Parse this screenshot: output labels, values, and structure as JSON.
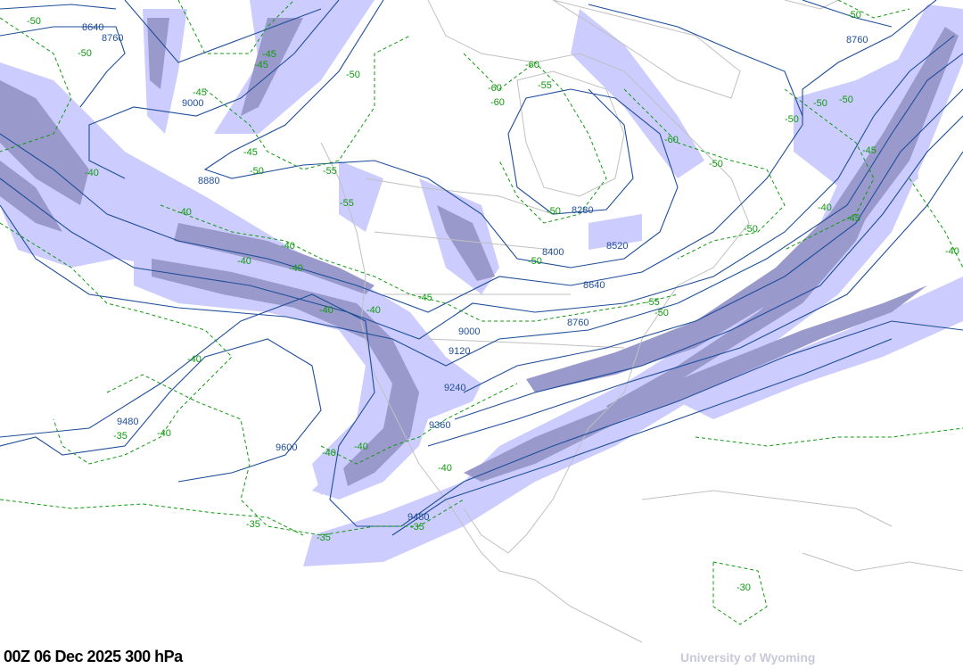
{
  "map": {
    "caption": "00Z 06 Dec 2025  300 hPa",
    "credit": "University of Wyoming",
    "colors": {
      "jet_light": "#ccccff",
      "jet_dark": "#9999cc",
      "height_contour": "#1f4e9a",
      "temperature_contour": "#109a10",
      "coastline": "#c0c0c0"
    },
    "height_labels": [
      "8640",
      "8760",
      "9000",
      "8880",
      "8280",
      "8400",
      "8520",
      "8640",
      "8760",
      "9000",
      "9120",
      "9240",
      "9360",
      "9480",
      "9600",
      "9480",
      "8760"
    ],
    "temperature_labels": [
      "-50",
      "-50",
      "-45",
      "-45",
      "-45",
      "-50",
      "-60",
      "-60",
      "-60",
      "-55",
      "-45",
      "-50",
      "-55",
      "-55",
      "-40",
      "-40",
      "-40",
      "-40",
      "-40",
      "-45",
      "-40",
      "-40",
      "-40",
      "-40",
      "-35",
      "-40",
      "-40",
      "-40",
      "-35",
      "-35",
      "-35",
      "-50",
      "-50",
      "-50",
      "-50",
      "-60",
      "-50",
      "-50",
      "-45",
      "-40",
      "-45",
      "-55",
      "-50",
      "-50",
      "-40",
      "-30",
      "-50"
    ]
  }
}
